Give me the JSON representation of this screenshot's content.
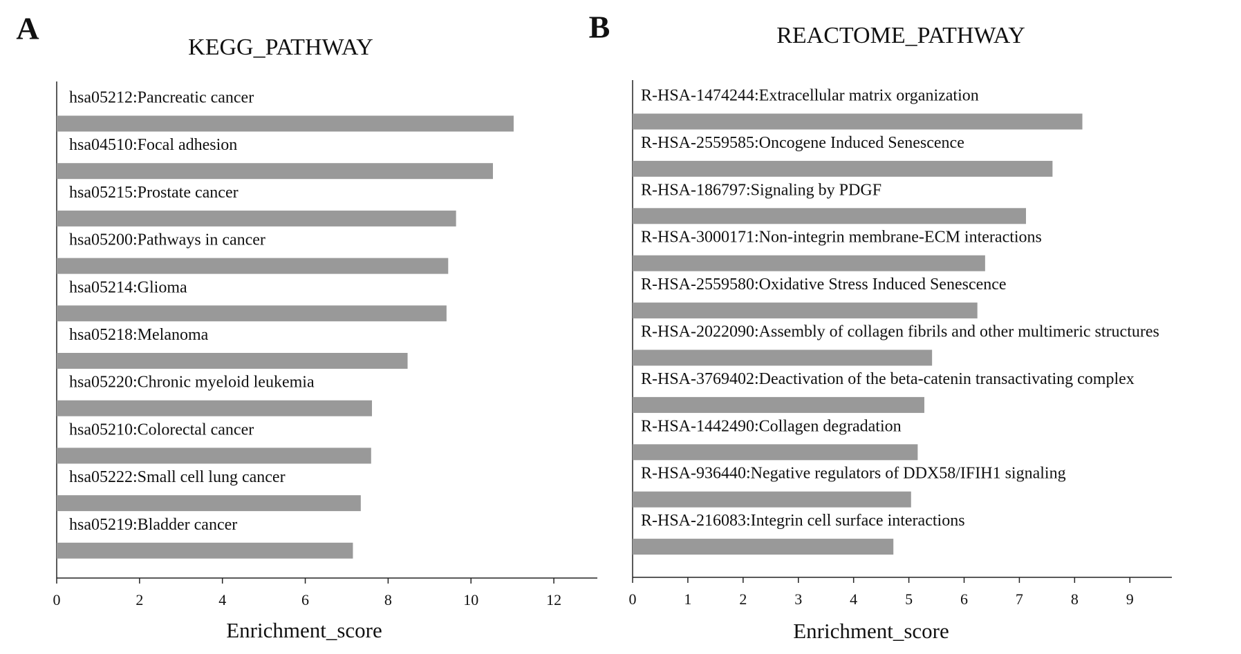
{
  "chart_data": [
    {
      "type": "bar",
      "orientation": "horizontal",
      "label": "A",
      "title": "KEGG_PATHWAY",
      "x_label": "Enrichment_score",
      "categories": [
        "hsa05212:Pancreatic cancer",
        "hsa04510:Focal adhesion",
        "hsa05215:Prostate cancer",
        "hsa05200:Pathways in cancer",
        "hsa05214:Glioma",
        "hsa05218:Melanoma",
        "hsa05220:Chronic myeloid leukemia",
        "hsa05210:Colorectal cancer",
        "hsa05222:Small cell lung cancer",
        "hsa05219:Bladder cancer"
      ],
      "values": [
        11.03,
        10.53,
        9.64,
        9.45,
        9.41,
        8.47,
        7.61,
        7.59,
        7.34,
        7.15
      ],
      "color": "#999999",
      "xlim": [
        0,
        13.05
      ],
      "xticks": [
        0,
        2,
        4,
        6,
        8,
        10,
        12
      ]
    },
    {
      "type": "bar",
      "orientation": "horizontal",
      "label": "B",
      "title": "REACTOME_PATHWAY",
      "x_label": "Enrichment_score",
      "categories": [
        "R-HSA-1474244:Extracellular matrix organization",
        "R-HSA-2559585:Oncogene Induced Senescence",
        "R-HSA-186797:Signaling by PDGF",
        "R-HSA-3000171:Non-integrin membrane-ECM interactions",
        "R-HSA-2559580:Oxidative Stress Induced Senescence",
        "R-HSA-2022090:Assembly of collagen fibrils and other multimeric structures",
        "R-HSA-3769402:Deactivation of the beta-catenin transactivating complex",
        "R-HSA-1442490:Collagen degradation",
        "R-HSA-936440:Negative regulators of DDX58/IFIH1 signaling",
        "R-HSA-216083:Integrin cell surface interactions"
      ],
      "values": [
        8.14,
        7.6,
        7.12,
        6.38,
        6.24,
        5.42,
        5.28,
        5.16,
        5.04,
        4.72
      ],
      "color": "#999999",
      "xlim": [
        0,
        9.76
      ],
      "xticks": [
        0,
        1,
        2,
        3,
        4,
        5,
        6,
        7,
        8,
        9
      ]
    }
  ]
}
